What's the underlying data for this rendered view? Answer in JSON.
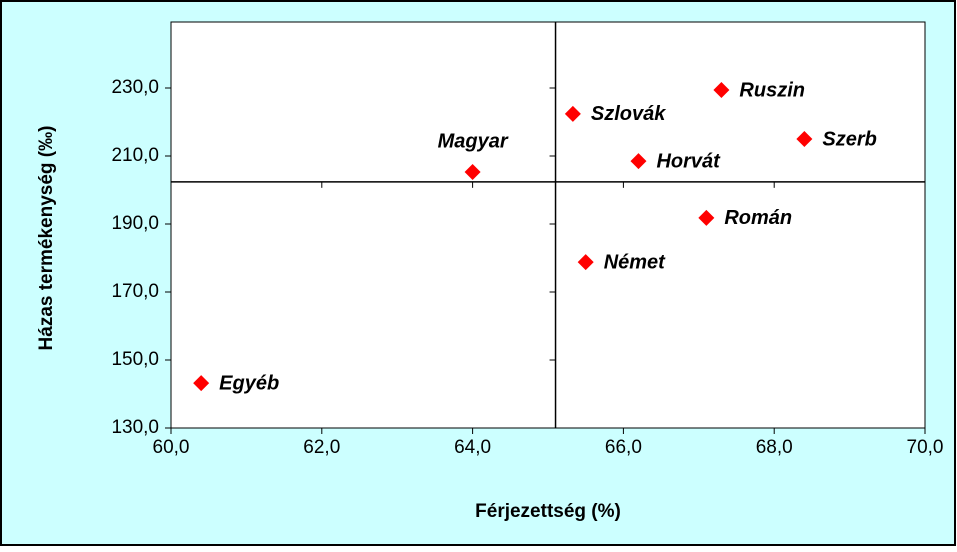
{
  "chart_data": {
    "type": "scatter",
    "xlabel": "Férjezettség (%)",
    "ylabel": "Házas termékenység (‰)",
    "points": [
      {
        "label": "Magyar",
        "x": 64.0,
        "y": 205.3,
        "label_position": "above"
      },
      {
        "label": "Szlovák",
        "x": 65.33,
        "y": 222.4,
        "label_position": "right"
      },
      {
        "label": "Ruszin",
        "x": 67.3,
        "y": 229.4,
        "label_position": "right"
      },
      {
        "label": "Szerb",
        "x": 68.4,
        "y": 215.0,
        "label_position": "right"
      },
      {
        "label": "Horvát",
        "x": 66.2,
        "y": 208.5,
        "label_position": "right"
      },
      {
        "label": "Román",
        "x": 67.1,
        "y": 191.8,
        "label_position": "right"
      },
      {
        "label": "Német",
        "x": 65.5,
        "y": 178.8,
        "label_position": "right"
      },
      {
        "label": "Egyéb",
        "x": 60.4,
        "y": 143.2,
        "label_position": "right"
      }
    ],
    "color": "#ff0000",
    "crosshair": {
      "x": 65.1,
      "y": 202.4
    },
    "xlim": [
      60,
      70
    ],
    "xticks": [
      {
        "value": 60,
        "label": "60,0"
      },
      {
        "value": 62,
        "label": "62,0"
      },
      {
        "value": 64,
        "label": "64,0"
      },
      {
        "value": 66,
        "label": "66,0"
      },
      {
        "value": 68,
        "label": "68,0"
      },
      {
        "value": 70,
        "label": "70,0"
      }
    ],
    "ylim": [
      130,
      230
    ],
    "yticks": [
      {
        "value": 130,
        "label": "130,0"
      },
      {
        "value": 150,
        "label": "150,0"
      },
      {
        "value": 170,
        "label": "170,0"
      },
      {
        "value": 190,
        "label": "190,0"
      },
      {
        "value": 210,
        "label": "210,0"
      },
      {
        "value": 230,
        "label": "230,0"
      }
    ]
  }
}
